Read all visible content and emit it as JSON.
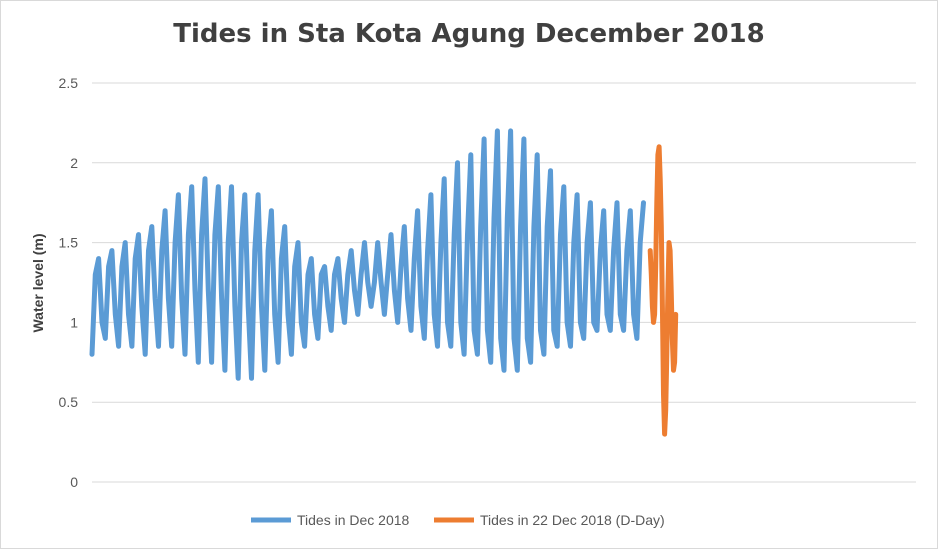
{
  "chart_data": {
    "type": "line",
    "title": "Tides in Sta Kota Agung December 2018",
    "xlabel": "",
    "ylabel": "Water level (m)",
    "ylim": [
      0,
      2.5
    ],
    "yticks": [
      "0",
      "0.5",
      "1",
      "1.5",
      "2",
      "2.5"
    ],
    "grid": true,
    "legend_position": "bottom",
    "x_unit": "hours since 2018-12-01 00:00",
    "series": [
      {
        "name": "Tides in Dec 2018",
        "color": "#5b9bd5",
        "sampling_hours": 3,
        "values": [
          0.8,
          1.3,
          1.4,
          1.0,
          0.9,
          1.35,
          1.45,
          1.05,
          0.85,
          1.35,
          1.5,
          1.05,
          0.85,
          1.4,
          1.55,
          1.1,
          0.8,
          1.45,
          1.6,
          1.15,
          0.85,
          1.45,
          1.7,
          1.15,
          0.85,
          1.5,
          1.8,
          1.15,
          0.8,
          1.55,
          1.85,
          1.2,
          0.75,
          1.55,
          1.9,
          1.2,
          0.75,
          1.55,
          1.85,
          1.15,
          0.7,
          1.5,
          1.85,
          1.1,
          0.65,
          1.5,
          1.8,
          1.1,
          0.65,
          1.45,
          1.8,
          1.1,
          0.7,
          1.45,
          1.7,
          1.05,
          0.75,
          1.4,
          1.6,
          1.05,
          0.8,
          1.35,
          1.5,
          1.0,
          0.85,
          1.3,
          1.4,
          1.05,
          0.9,
          1.3,
          1.35,
          1.1,
          0.95,
          1.3,
          1.4,
          1.15,
          1.0,
          1.3,
          1.45,
          1.2,
          1.05,
          1.3,
          1.5,
          1.25,
          1.1,
          1.25,
          1.5,
          1.25,
          1.05,
          1.3,
          1.55,
          1.2,
          1.0,
          1.35,
          1.6,
          1.15,
          0.95,
          1.4,
          1.7,
          1.1,
          0.9,
          1.45,
          1.8,
          1.05,
          0.85,
          1.5,
          1.9,
          1.0,
          0.85,
          1.55,
          2.0,
          1.0,
          0.8,
          1.55,
          2.05,
          0.95,
          0.8,
          1.6,
          2.15,
          0.95,
          0.75,
          1.65,
          2.2,
          0.9,
          0.7,
          1.65,
          2.2,
          0.9,
          0.7,
          1.6,
          2.15,
          0.9,
          0.75,
          1.6,
          2.05,
          0.95,
          0.8,
          1.6,
          1.95,
          0.95,
          0.85,
          1.55,
          1.85,
          1.0,
          0.85,
          1.5,
          1.8,
          1.0,
          0.9,
          1.5,
          1.75,
          1.0,
          0.95,
          1.45,
          1.7,
          1.05,
          0.95,
          1.45,
          1.75,
          1.05,
          0.95,
          1.45,
          1.7,
          1.05,
          0.9,
          1.5,
          1.75
        ]
      },
      {
        "name": "Tides in 22 Dec 2018 (D-Day)",
        "color": "#ed7d31",
        "start_hour": 504,
        "sampling_hours": 1,
        "values": [
          1.45,
          1.3,
          1.1,
          1.0,
          1.05,
          1.35,
          1.75,
          2.05,
          2.1,
          1.9,
          1.6,
          1.1,
          0.55,
          0.3,
          0.45,
          0.8,
          1.2,
          1.5,
          1.45,
          1.2,
          0.9,
          0.7,
          0.75,
          1.05
        ]
      }
    ]
  }
}
